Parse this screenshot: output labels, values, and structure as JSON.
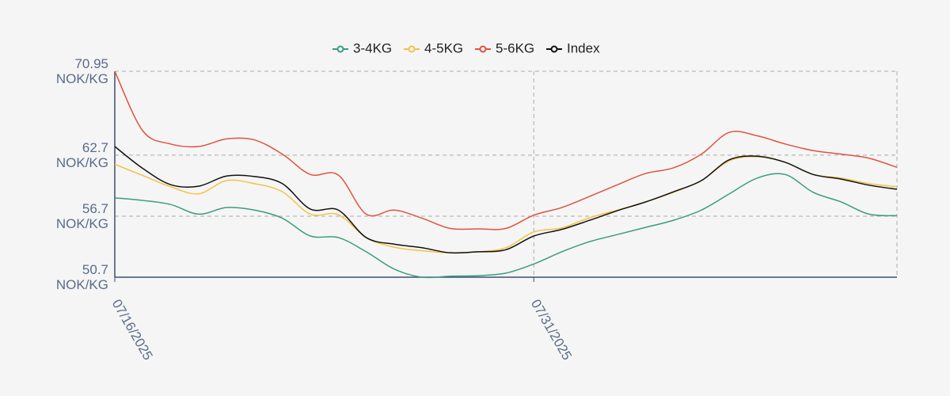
{
  "chart_data": {
    "type": "line",
    "x": [
      "07/16/2025",
      "07/17/2025",
      "07/18/2025",
      "07/19/2025",
      "07/20/2025",
      "07/21/2025",
      "07/22/2025",
      "07/23/2025",
      "07/24/2025",
      "07/25/2025",
      "07/26/2025",
      "07/27/2025",
      "07/28/2025",
      "07/29/2025",
      "07/30/2025",
      "07/31/2025",
      "08/01/2025",
      "08/02/2025",
      "08/03/2025",
      "08/04/2025",
      "08/05/2025",
      "08/06/2025",
      "08/07/2025",
      "08/08/2025",
      "08/09/2025",
      "08/10/2025",
      "08/11/2025",
      "08/12/2025",
      "08/13/2025"
    ],
    "series": [
      {
        "name": "3-4KG",
        "color": "#3a9b82",
        "values": [
          58.5,
          58.25,
          57.85,
          56.9,
          57.55,
          57.3,
          56.5,
          54.75,
          54.6,
          53.2,
          51.5,
          50.7,
          50.8,
          50.85,
          51.1,
          52.0,
          53.2,
          54.2,
          54.9,
          55.6,
          56.3,
          57.3,
          58.9,
          60.45,
          60.8,
          59.05,
          58.1,
          56.9,
          56.75
        ]
      },
      {
        "name": "4-5KG",
        "color": "#f3c344",
        "values": [
          61.8,
          60.7,
          59.6,
          58.9,
          60.2,
          59.9,
          59.1,
          56.9,
          56.85,
          54.6,
          53.65,
          53.3,
          53.1,
          53.2,
          53.6,
          55.15,
          55.55,
          56.55,
          57.3,
          58.1,
          59.05,
          60.2,
          62.15,
          62.55,
          62.0,
          60.8,
          60.45,
          59.9,
          59.6
        ]
      },
      {
        "name": "5-6KG",
        "color": "#e0533f",
        "values": [
          70.95,
          65.1,
          63.8,
          63.55,
          64.3,
          64.2,
          62.8,
          60.8,
          60.75,
          56.9,
          57.3,
          56.5,
          55.5,
          55.45,
          55.5,
          56.8,
          57.55,
          58.65,
          59.8,
          60.9,
          61.45,
          62.8,
          64.95,
          64.6,
          63.8,
          63.15,
          62.8,
          62.4,
          61.5
        ]
      },
      {
        "name": "Index",
        "color": "#111111",
        "values": [
          63.55,
          61.4,
          59.8,
          59.65,
          60.65,
          60.6,
          59.9,
          57.4,
          57.3,
          54.6,
          53.95,
          53.6,
          53.1,
          53.2,
          53.4,
          54.75,
          55.4,
          56.3,
          57.25,
          58.1,
          59.1,
          60.2,
          62.25,
          62.6,
          62.0,
          60.8,
          60.35,
          59.75,
          59.35
        ]
      }
    ],
    "xlim": [
      "07/16/2025",
      "08/13/2025"
    ],
    "xticks": [
      "07/16/2025",
      "07/31/2025"
    ],
    "ylim": [
      50.7,
      70.95
    ],
    "yticks": [
      {
        "value": 50.7,
        "label": "50.7 NOK/KG"
      },
      {
        "value": 56.7,
        "label": "56.7 NOK/KG"
      },
      {
        "value": 62.7,
        "label": "62.7 NOK/KG"
      },
      {
        "value": 70.95,
        "label": "70.95 NOK/KG"
      }
    ],
    "grid": true,
    "legend": "top"
  }
}
